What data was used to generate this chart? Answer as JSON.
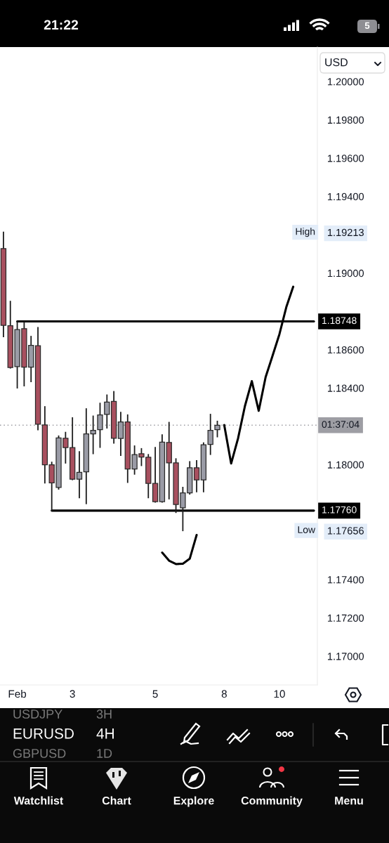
{
  "chart_data": {
    "type": "candlestick",
    "title": "EURUSD",
    "subtitle": "4H",
    "categories": [
      null,
      null,
      "Feb",
      null,
      null,
      null,
      null,
      null,
      null,
      null,
      "3",
      null,
      null,
      null,
      null,
      null,
      null,
      null,
      null,
      null,
      null,
      null,
      "5",
      null,
      null,
      null,
      null,
      null,
      null,
      null,
      null,
      null,
      "8",
      null,
      null,
      null,
      null,
      null,
      null,
      null,
      "10",
      null,
      null,
      null,
      null,
      null
    ],
    "ohlc": [
      [
        1.19128,
        1.19213,
        1.18669,
        1.18727
      ],
      [
        1.18725,
        1.18852,
        1.18505,
        1.18507
      ],
      [
        1.18512,
        1.18748,
        1.18401,
        1.18705
      ],
      [
        1.1871,
        1.18745,
        1.18412,
        1.18509
      ],
      [
        1.18509,
        1.18669,
        1.18434,
        1.18623
      ],
      [
        1.18621,
        1.18715,
        1.18183,
        1.18211
      ],
      [
        1.18207,
        1.18302,
        1.17905,
        1.17999
      ],
      [
        1.17999,
        1.18012,
        1.1776,
        1.17905
      ],
      [
        1.17881,
        1.18149,
        1.17873,
        1.1814
      ],
      [
        1.18138,
        1.18168,
        1.18009,
        1.18089
      ],
      [
        1.18089,
        1.18244,
        1.17922,
        1.17924
      ],
      [
        1.17924,
        1.18067,
        1.17828,
        1.1796
      ],
      [
        1.17963,
        1.18291,
        1.17797,
        1.18161
      ],
      [
        1.18161,
        1.18253,
        1.18058,
        1.18179
      ],
      [
        1.18183,
        1.1832,
        1.18091,
        1.1826
      ],
      [
        1.18262,
        1.18363,
        1.18192,
        1.18327
      ],
      [
        1.1833,
        1.18381,
        1.18113,
        1.18138
      ],
      [
        1.18137,
        1.18272,
        1.18049,
        1.18223
      ],
      [
        1.18223,
        1.18259,
        1.17908,
        1.17977
      ],
      [
        1.17977,
        1.18097,
        1.17951,
        1.18052
      ],
      [
        1.18057,
        1.18083,
        1.17996,
        1.1804
      ],
      [
        1.18039,
        1.18052,
        1.17828,
        1.17902
      ],
      [
        1.17902,
        1.18089,
        1.17805,
        1.17807
      ],
      [
        1.17807,
        1.18155,
        1.17805,
        1.18118
      ],
      [
        1.18116,
        1.1822,
        1.17822,
        1.18009
      ],
      [
        1.18009,
        1.1803,
        1.17751,
        1.17792
      ],
      [
        1.17775,
        1.17881,
        1.17656,
        1.17853
      ],
      [
        1.17853,
        1.18015,
        1.17847,
        1.17984
      ],
      [
        1.17984,
        1.1802,
        1.17859,
        1.1792
      ],
      [
        1.1792,
        1.18113,
        1.17859,
        1.18104
      ],
      [
        1.18106,
        1.18262,
        1.18054,
        1.18179
      ],
      [
        1.18183,
        1.18226,
        1.18146,
        1.18206
      ],
      null,
      null,
      null,
      null,
      null,
      null,
      null,
      null,
      null,
      null,
      null,
      null,
      null,
      null
    ],
    "colors": [
      "#a8505f",
      "#a8505f",
      "#9a9ba6",
      "#a8505f",
      "#9a9ba6",
      "#a8505f",
      "#a8505f",
      "#a8505f",
      "#9a9ba6",
      "#a8505f",
      "#a8505f",
      "#9a9ba6",
      "#9a9ba6",
      "#9a9ba6",
      "#9a9ba6",
      "#9a9ba6",
      "#a8505f",
      "#9a9ba6",
      "#a8505f",
      "#9a9ba6",
      "#a8505f",
      "#a8505f",
      "#a8505f",
      "#9a9ba6",
      "#a8505f",
      "#a8505f",
      "#9a9ba6",
      "#9a9ba6",
      "#a8505f",
      "#9a9ba6",
      "#9a9ba6",
      "#9a9ba6",
      null,
      null,
      null,
      null,
      null,
      null,
      null,
      null,
      null,
      null,
      null,
      null,
      null,
      null
    ],
    "series": [
      {
        "type": "line",
        "color": "#000000",
        "values": [
          null,
          null,
          1.18748,
          1.18748,
          1.18748,
          1.18748,
          1.18748,
          1.18748,
          1.18748,
          1.18748,
          1.18748,
          1.18748,
          1.18748,
          1.18748,
          1.18748,
          1.18748,
          1.18748,
          1.18748,
          1.18748,
          1.18748,
          1.18748,
          1.18748,
          1.18748,
          1.18748,
          1.18748,
          1.18748,
          1.18748,
          1.18748,
          1.18748,
          1.18748,
          1.18748,
          1.18748,
          1.18748,
          1.18748,
          1.18748,
          1.18748,
          1.18748,
          1.18748,
          1.18748,
          1.18748,
          1.18748,
          1.18748,
          1.18748,
          1.18748,
          1.18748,
          1.18748
        ],
        "value_labels": [
          null,
          null,
          null,
          null,
          null,
          null,
          null,
          null,
          null,
          null,
          null,
          null,
          null,
          null,
          null,
          null,
          null,
          null,
          null,
          null,
          null,
          null,
          null,
          null,
          null,
          null,
          null,
          null,
          null,
          null,
          null,
          null,
          null,
          null,
          null,
          null,
          null,
          null,
          null,
          null,
          null,
          null,
          null,
          null,
          null,
          "1.18748"
        ]
      },
      {
        "type": "line",
        "color": "#000000",
        "values": [
          null,
          null,
          null,
          null,
          null,
          null,
          null,
          1.1776,
          1.1776,
          1.1776,
          1.1776,
          1.1776,
          1.1776,
          1.1776,
          1.1776,
          1.1776,
          1.1776,
          1.1776,
          1.1776,
          1.1776,
          1.1776,
          1.1776,
          1.1776,
          1.1776,
          1.1776,
          1.1776,
          1.1776,
          1.1776,
          1.1776,
          1.1776,
          1.1776,
          1.1776,
          1.1776,
          1.1776,
          1.1776,
          1.1776,
          1.1776,
          1.1776,
          1.1776,
          1.1776,
          1.1776,
          1.1776,
          1.1776,
          1.1776,
          1.1776,
          1.1776
        ],
        "value_labels": [
          null,
          null,
          null,
          null,
          null,
          null,
          null,
          null,
          null,
          null,
          null,
          null,
          null,
          null,
          null,
          null,
          null,
          null,
          null,
          null,
          null,
          null,
          null,
          null,
          null,
          null,
          null,
          null,
          null,
          null,
          null,
          null,
          null,
          null,
          null,
          null,
          null,
          null,
          null,
          null,
          null,
          null,
          null,
          null,
          null,
          "1.17760"
        ]
      },
      {
        "type": "line",
        "color": "#000000",
        "values": [
          null,
          null,
          null,
          null,
          null,
          null,
          null,
          null,
          null,
          null,
          null,
          null,
          null,
          null,
          null,
          null,
          null,
          null,
          null,
          null,
          null,
          null,
          null,
          null,
          null,
          null,
          null,
          null,
          null,
          null,
          null,
          null,
          1.18207,
          1.18006,
          1.18137,
          1.18306,
          1.18436,
          1.18281,
          1.18457,
          1.18568,
          1.18681,
          1.18823,
          1.18929,
          null,
          null,
          null
        ]
      },
      {
        "type": "line",
        "color": "#000000",
        "values": [
          null,
          null,
          null,
          null,
          null,
          null,
          null,
          null,
          null,
          null,
          null,
          null,
          null,
          null,
          null,
          null,
          null,
          null,
          null,
          null,
          null,
          null,
          null,
          1.17541,
          1.17499,
          1.17481,
          1.17483,
          1.17509,
          1.17633,
          null,
          null,
          null,
          null,
          null,
          null,
          null,
          null,
          null,
          null,
          null,
          null,
          null,
          null,
          null,
          null,
          null
        ]
      }
    ],
    "ref_lines": [
      {
        "axis": "y",
        "value": 1.18206,
        "label": "01:37:04",
        "color": "#9e9ea4",
        "line_style": "dotted"
      }
    ],
    "annotations": [
      "21:22",
      "5",
      "USD",
      "USDJPY",
      "3H",
      "GBPUSD",
      "1D",
      "Watchlist",
      "Chart",
      "Explore",
      "Community",
      "Menu",
      {
        "text": "High",
        "y": 1.19213
      },
      {
        "text": "Low",
        "y": 1.17656
      }
    ],
    "ylim": [
      1.1685,
      1.2018
    ],
    "yticks": [
      {
        "value": 1.17,
        "label": "1.17000"
      },
      {
        "value": 1.172,
        "label": "1.17200"
      },
      {
        "value": 1.174,
        "label": "1.17400"
      },
      {
        "value": 1.17656,
        "label": "1.17656"
      },
      {
        "value": 1.18,
        "label": "1.18000"
      },
      {
        "value": 1.184,
        "label": "1.18400"
      },
      {
        "value": 1.186,
        "label": "1.18600"
      },
      {
        "value": 1.19,
        "label": "1.19000"
      },
      {
        "value": 1.19213,
        "label": "1.19213"
      },
      {
        "value": 1.194,
        "label": "1.19400"
      },
      {
        "value": 1.196,
        "label": "1.19600"
      },
      {
        "value": 1.198,
        "label": "1.19800"
      },
      {
        "value": 1.2,
        "label": "1.20000"
      }
    ]
  }
}
